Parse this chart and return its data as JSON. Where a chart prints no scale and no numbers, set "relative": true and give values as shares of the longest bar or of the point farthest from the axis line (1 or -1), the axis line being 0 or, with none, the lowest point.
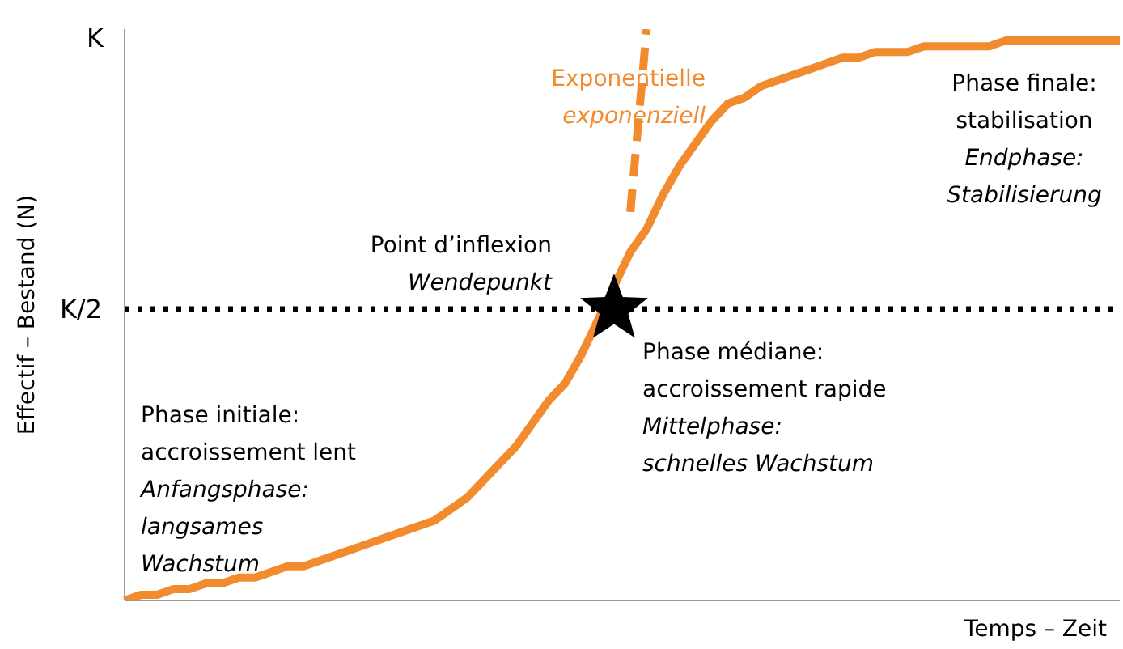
{
  "chart_data": {
    "type": "line",
    "relative": true,
    "xlabel": "Temps – Zeit",
    "ylabel": "Effectif – Bestand (N)",
    "categories": [
      null,
      null,
      null,
      null,
      null,
      null,
      null,
      null,
      null,
      null,
      null,
      null,
      null,
      null,
      null,
      null,
      null,
      null,
      null,
      null,
      null,
      null,
      null,
      null,
      null,
      null,
      null,
      null,
      null,
      null,
      null,
      null,
      null,
      null,
      null,
      null,
      null,
      null,
      null,
      null,
      null,
      null,
      null,
      null,
      null,
      null,
      null,
      null,
      null,
      null,
      null,
      null,
      null,
      null,
      null,
      null,
      null,
      null,
      null,
      null,
      null,
      null
    ],
    "series": [
      {
        "color": "#f28a2e",
        "line_style": "solid",
        "marker": "none",
        "values": [
          0,
          0.01,
          0.01,
          0.02,
          0.02,
          0.03,
          0.03,
          0.04,
          0.04,
          0.05,
          0.06,
          0.06,
          0.07,
          0.08,
          0.09,
          0.1,
          0.11,
          0.12,
          0.13,
          0.14,
          0.16,
          0.18,
          0.21,
          0.24,
          0.27,
          0.31,
          0.35,
          0.38,
          0.43,
          null,
          null,
          0.61,
          0.65,
          0.71,
          0.76,
          0.8,
          0.84,
          0.87,
          0.88,
          0.9,
          0.91,
          0.92,
          0.93,
          0.94,
          0.95,
          0.95,
          0.96,
          0.96,
          0.96,
          0.97,
          0.97,
          0.97,
          0.97,
          0.97,
          0.98,
          0.98,
          0.98,
          0.98,
          0.98,
          0.98,
          0.98,
          0.98
        ]
      },
      {
        "color": "#f28a2e",
        "line_style": "dashed",
        "marker": "none",
        "values": [
          null,
          null,
          null,
          null,
          null,
          null,
          null,
          null,
          null,
          null,
          null,
          null,
          null,
          null,
          null,
          null,
          null,
          null,
          null,
          null,
          null,
          null,
          null,
          null,
          null,
          null,
          null,
          null,
          null,
          null,
          null,
          0.68,
          1,
          null,
          null,
          null,
          null,
          null,
          null,
          null,
          null,
          null,
          null,
          null,
          null,
          null,
          null,
          null,
          null,
          null,
          null,
          null,
          null,
          null,
          null,
          null,
          null,
          null,
          null,
          null,
          null,
          null
        ]
      }
    ],
    "ref_lines": [
      {
        "axis": "y",
        "value": 0.51,
        "label": "K/2",
        "color": "#000000",
        "line_style": "dotted"
      }
    ],
    "annotations": [
      "Exponentielle",
      "exponenziell",
      "Phase finale:\nstabilisation",
      "Endphase:\nStabilisierung",
      "Point d’inflexion",
      "Wendepunkt",
      "Phase médiane:\naccroissement rapide",
      "Mittelphase:\nschnelles Wachstum",
      "Phase initiale:\naccroissement lent",
      "Anfangsphase:\nlangsames\nWachstum",
      "K"
    ]
  }
}
